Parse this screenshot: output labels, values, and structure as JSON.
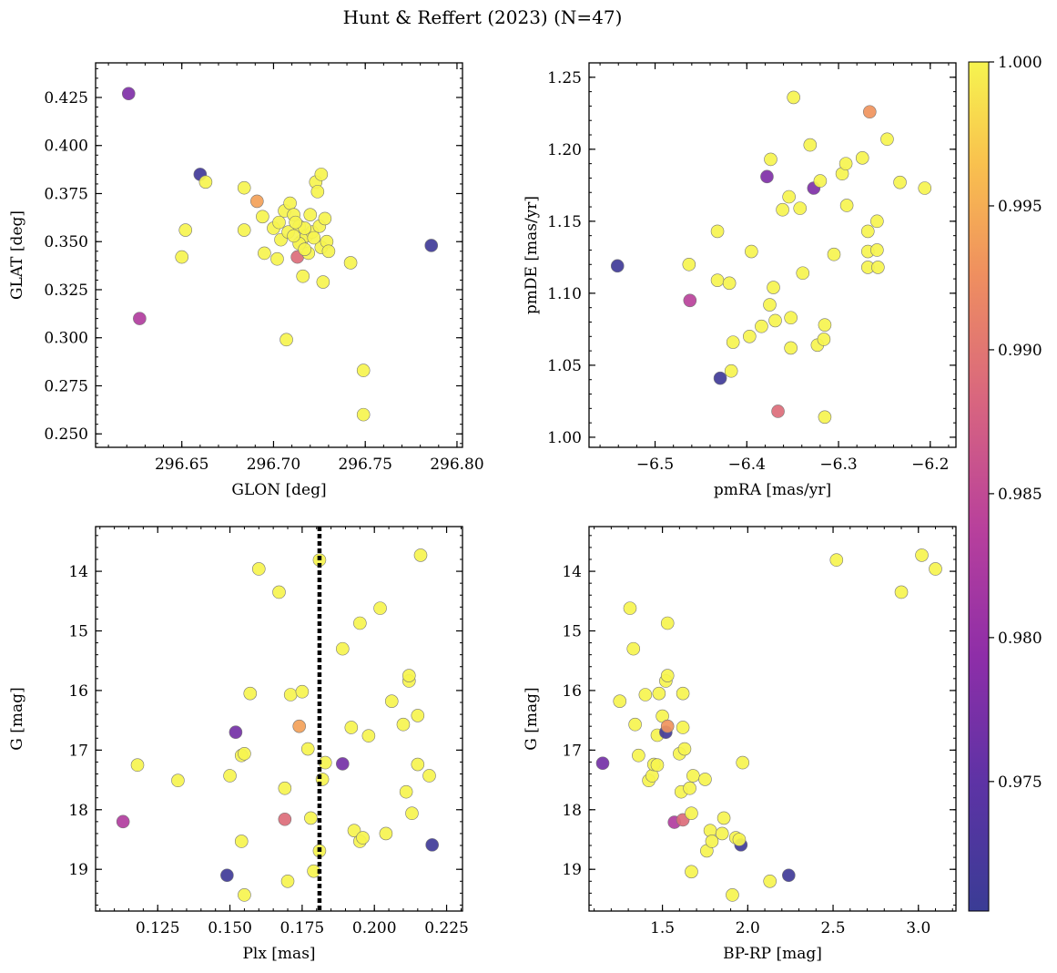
{
  "figure_title": "Hunt & Reffert (2023) (N=47)",
  "colorbar": {
    "cmap": "plasma",
    "range": [
      0.9705,
      1.0
    ],
    "ticks": [
      0.975,
      0.98,
      0.985,
      0.99,
      0.995,
      1.0
    ],
    "tick_labels": [
      "0.975",
      "0.980",
      "0.985",
      "0.990",
      "0.995",
      "1.000"
    ]
  },
  "chart_data": [
    {
      "type": "scatter",
      "id": "glon_glat",
      "xlabel": "GLON [deg]",
      "ylabel": "GLAT [deg]",
      "xlim": [
        296.603,
        296.803
      ],
      "ylim": [
        0.243,
        0.443
      ],
      "xticks": [
        296.65,
        296.7,
        296.75,
        296.8
      ],
      "xtick_labels": [
        "296.65",
        "296.70",
        "296.75",
        "296.80"
      ],
      "yticks": [
        0.25,
        0.275,
        0.3,
        0.325,
        0.35,
        0.375,
        0.4,
        0.425
      ],
      "ytick_labels": [
        "0.250",
        "0.275",
        "0.300",
        "0.325",
        "0.350",
        "0.375",
        "0.400",
        "0.425"
      ],
      "points": [
        [
          296.621,
          0.427,
          0.978
        ],
        [
          296.66,
          0.385,
          0.9715
        ],
        [
          296.663,
          0.381,
          1.0
        ],
        [
          296.691,
          0.371,
          0.994
        ],
        [
          296.684,
          0.378,
          1.0
        ],
        [
          296.652,
          0.356,
          1.0
        ],
        [
          296.65,
          0.342,
          1.0
        ],
        [
          296.627,
          0.31,
          0.983
        ],
        [
          296.684,
          0.356,
          1.0
        ],
        [
          296.694,
          0.363,
          1.0
        ],
        [
          296.695,
          0.344,
          1.0
        ],
        [
          296.702,
          0.341,
          1.0
        ],
        [
          296.704,
          0.351,
          1.0
        ],
        [
          296.706,
          0.366,
          1.0
        ],
        [
          296.709,
          0.37,
          1.0
        ],
        [
          296.708,
          0.355,
          1.0
        ],
        [
          296.711,
          0.364,
          1.0
        ],
        [
          296.714,
          0.358,
          1.0
        ],
        [
          296.713,
          0.342,
          0.989
        ],
        [
          296.715,
          0.35,
          1.0
        ],
        [
          296.716,
          0.332,
          1.0
        ],
        [
          296.718,
          0.353,
          1.0
        ],
        [
          296.719,
          0.344,
          1.0
        ],
        [
          296.72,
          0.364,
          1.0
        ],
        [
          296.721,
          0.355,
          1.0
        ],
        [
          296.723,
          0.381,
          1.0
        ],
        [
          296.724,
          0.376,
          1.0
        ],
        [
          296.725,
          0.358,
          1.0
        ],
        [
          296.726,
          0.385,
          1.0
        ],
        [
          296.726,
          0.347,
          1.0
        ],
        [
          296.728,
          0.362,
          1.0
        ],
        [
          296.729,
          0.35,
          1.0
        ],
        [
          296.727,
          0.329,
          1.0
        ],
        [
          296.742,
          0.339,
          1.0
        ],
        [
          296.707,
          0.299,
          1.0
        ],
        [
          296.749,
          0.283,
          1.0
        ],
        [
          296.749,
          0.26,
          1.0
        ],
        [
          296.786,
          0.348,
          0.9712
        ],
        [
          296.717,
          0.357,
          1.0
        ],
        [
          296.714,
          0.349,
          1.0
        ],
        [
          296.722,
          0.352,
          1.0
        ],
        [
          296.712,
          0.36,
          1.0
        ],
        [
          296.73,
          0.345,
          1.0
        ],
        [
          296.7,
          0.357,
          1.0
        ],
        [
          296.717,
          0.346,
          1.0
        ],
        [
          296.711,
          0.353,
          1.0
        ],
        [
          296.703,
          0.36,
          1.0
        ]
      ]
    },
    {
      "type": "scatter",
      "id": "pmra_pmde",
      "xlabel": "pmRA [mas/yr]",
      "ylabel": "pmDE [mas/yr]",
      "xlim": [
        -6.572,
        -6.172
      ],
      "ylim": [
        0.993,
        1.26
      ],
      "xticks": [
        -6.5,
        -6.4,
        -6.3,
        -6.2
      ],
      "xtick_labels": [
        "−6.5",
        "−6.4",
        "−6.3",
        "−6.2"
      ],
      "yticks": [
        1.0,
        1.05,
        1.1,
        1.15,
        1.2,
        1.25
      ],
      "ytick_labels": [
        "1.00",
        "1.05",
        "1.10",
        "1.15",
        "1.20",
        "1.25"
      ],
      "points": [
        [
          -6.541,
          1.119,
          0.9712
        ],
        [
          -6.463,
          1.12,
          1.0
        ],
        [
          -6.462,
          1.095,
          0.984
        ],
        [
          -6.429,
          1.041,
          0.9712
        ],
        [
          -6.432,
          1.143,
          1.0
        ],
        [
          -6.432,
          1.109,
          1.0
        ],
        [
          -6.419,
          1.107,
          1.0
        ],
        [
          -6.415,
          1.066,
          1.0
        ],
        [
          -6.417,
          1.046,
          1.0
        ],
        [
          -6.395,
          1.129,
          1.0
        ],
        [
          -6.397,
          1.07,
          1.0
        ],
        [
          -6.384,
          1.077,
          1.0
        ],
        [
          -6.378,
          1.181,
          0.978
        ],
        [
          -6.374,
          1.193,
          1.0
        ],
        [
          -6.371,
          1.104,
          1.0
        ],
        [
          -6.375,
          1.092,
          1.0
        ],
        [
          -6.369,
          1.081,
          1.0
        ],
        [
          -6.366,
          1.018,
          0.989
        ],
        [
          -6.361,
          1.158,
          1.0
        ],
        [
          -6.354,
          1.167,
          1.0
        ],
        [
          -6.352,
          1.083,
          1.0
        ],
        [
          -6.352,
          1.062,
          1.0
        ],
        [
          -6.349,
          1.236,
          1.0
        ],
        [
          -6.342,
          1.159,
          1.0
        ],
        [
          -6.339,
          1.114,
          1.0
        ],
        [
          -6.331,
          1.203,
          1.0
        ],
        [
          -6.327,
          1.173,
          0.978
        ],
        [
          -6.323,
          1.064,
          1.0
        ],
        [
          -6.32,
          1.178,
          1.0
        ],
        [
          -6.316,
          1.068,
          1.0
        ],
        [
          -6.315,
          1.078,
          1.0
        ],
        [
          -6.315,
          1.014,
          1.0
        ],
        [
          -6.305,
          1.127,
          1.0
        ],
        [
          -6.296,
          1.183,
          1.0
        ],
        [
          -6.292,
          1.19,
          1.0
        ],
        [
          -6.291,
          1.161,
          1.0
        ],
        [
          -6.274,
          1.194,
          1.0
        ],
        [
          -6.268,
          1.129,
          1.0
        ],
        [
          -6.268,
          1.143,
          1.0
        ],
        [
          -6.268,
          1.118,
          1.0
        ],
        [
          -6.266,
          1.226,
          0.993
        ],
        [
          -6.258,
          1.15,
          1.0
        ],
        [
          -6.258,
          1.13,
          1.0
        ],
        [
          -6.257,
          1.118,
          1.0
        ],
        [
          -6.247,
          1.207,
          1.0
        ],
        [
          -6.233,
          1.177,
          1.0
        ],
        [
          -6.206,
          1.173,
          1.0
        ]
      ]
    },
    {
      "type": "scatter",
      "id": "plx_g",
      "xlabel": "Plx [mas]",
      "ylabel": "G [mag]",
      "xlim": [
        0.1035,
        0.2305
      ],
      "ylim": [
        19.7,
        13.25
      ],
      "y_inverted": true,
      "vline": 0.181,
      "xticks": [
        0.125,
        0.15,
        0.175,
        0.2,
        0.225
      ],
      "xtick_labels": [
        "0.125",
        "0.150",
        "0.175",
        "0.200",
        "0.225"
      ],
      "yticks": [
        14,
        15,
        16,
        17,
        18,
        19
      ],
      "ytick_labels": [
        "14",
        "15",
        "16",
        "17",
        "18",
        "19"
      ],
      "points": [
        [
          0.113,
          18.2,
          0.983
        ],
        [
          0.118,
          17.25,
          1.0
        ],
        [
          0.132,
          17.51,
          1.0
        ],
        [
          0.149,
          19.1,
          0.9712
        ],
        [
          0.15,
          17.43,
          1.0
        ],
        [
          0.152,
          16.7,
          0.977
        ],
        [
          0.154,
          17.09,
          1.0
        ],
        [
          0.155,
          17.06,
          1.0
        ],
        [
          0.154,
          18.53,
          1.0
        ],
        [
          0.155,
          19.43,
          1.0
        ],
        [
          0.157,
          16.05,
          1.0
        ],
        [
          0.16,
          13.96,
          1.0
        ],
        [
          0.167,
          14.35,
          1.0
        ],
        [
          0.169,
          17.64,
          1.0
        ],
        [
          0.169,
          18.16,
          0.989
        ],
        [
          0.17,
          19.2,
          1.0
        ],
        [
          0.171,
          16.07,
          1.0
        ],
        [
          0.174,
          16.6,
          0.994
        ],
        [
          0.175,
          16.02,
          1.0
        ],
        [
          0.177,
          16.98,
          1.0
        ],
        [
          0.178,
          18.14,
          1.0
        ],
        [
          0.179,
          19.03,
          1.0
        ],
        [
          0.181,
          13.81,
          1.0
        ],
        [
          0.181,
          18.69,
          1.0
        ],
        [
          0.182,
          17.49,
          1.0
        ],
        [
          0.183,
          17.21,
          1.0
        ],
        [
          0.189,
          17.23,
          0.977
        ],
        [
          0.189,
          15.3,
          1.0
        ],
        [
          0.192,
          16.62,
          1.0
        ],
        [
          0.193,
          18.35,
          1.0
        ],
        [
          0.195,
          14.87,
          1.0
        ],
        [
          0.195,
          18.53,
          1.0
        ],
        [
          0.196,
          18.47,
          1.0
        ],
        [
          0.198,
          16.76,
          1.0
        ],
        [
          0.202,
          14.62,
          1.0
        ],
        [
          0.204,
          18.4,
          1.0
        ],
        [
          0.206,
          16.18,
          1.0
        ],
        [
          0.21,
          16.57,
          1.0
        ],
        [
          0.211,
          17.7,
          1.0
        ],
        [
          0.212,
          15.84,
          1.0
        ],
        [
          0.212,
          15.75,
          1.0
        ],
        [
          0.213,
          18.06,
          1.0
        ],
        [
          0.215,
          17.24,
          1.0
        ],
        [
          0.215,
          16.42,
          1.0
        ],
        [
          0.216,
          13.73,
          1.0
        ],
        [
          0.219,
          17.43,
          1.0
        ],
        [
          0.22,
          18.59,
          0.9712
        ]
      ]
    },
    {
      "type": "scatter",
      "id": "bprp_g",
      "xlabel": "BP-RP [mag]",
      "ylabel": "G [mag]",
      "xlim": [
        1.07,
        3.22
      ],
      "ylim": [
        19.7,
        13.25
      ],
      "y_inverted": true,
      "xticks": [
        1.5,
        2.0,
        2.5,
        3.0
      ],
      "xtick_labels": [
        "1.5",
        "2.0",
        "2.5",
        "3.0"
      ],
      "yticks": [
        14,
        15,
        16,
        17,
        18,
        19
      ],
      "ytick_labels": [
        "14",
        "15",
        "16",
        "17",
        "18",
        "19"
      ],
      "points": [
        [
          1.15,
          17.22,
          0.977
        ],
        [
          1.25,
          16.18,
          1.0
        ],
        [
          1.31,
          14.62,
          1.0
        ],
        [
          1.33,
          15.3,
          1.0
        ],
        [
          1.34,
          16.57,
          1.0
        ],
        [
          1.36,
          17.09,
          1.0
        ],
        [
          1.4,
          16.07,
          1.0
        ],
        [
          1.42,
          17.51,
          1.0
        ],
        [
          1.44,
          17.43,
          1.0
        ],
        [
          1.45,
          17.24,
          1.0
        ],
        [
          1.47,
          17.25,
          1.0
        ],
        [
          1.47,
          16.75,
          1.0
        ],
        [
          1.48,
          16.05,
          1.0
        ],
        [
          1.5,
          16.43,
          1.0
        ],
        [
          1.52,
          16.7,
          0.9715
        ],
        [
          1.52,
          15.84,
          1.0
        ],
        [
          1.53,
          15.75,
          1.0
        ],
        [
          1.53,
          14.87,
          1.0
        ],
        [
          1.53,
          16.6,
          0.993
        ],
        [
          1.57,
          18.21,
          0.983
        ],
        [
          1.6,
          17.06,
          1.0
        ],
        [
          1.61,
          17.7,
          1.0
        ],
        [
          1.62,
          18.17,
          0.989
        ],
        [
          1.62,
          16.05,
          1.0
        ],
        [
          1.62,
          16.62,
          1.0
        ],
        [
          1.63,
          16.98,
          1.0
        ],
        [
          1.66,
          17.64,
          1.0
        ],
        [
          1.67,
          18.06,
          1.0
        ],
        [
          1.68,
          17.43,
          1.0
        ],
        [
          1.67,
          19.04,
          1.0
        ],
        [
          1.75,
          17.49,
          1.0
        ],
        [
          1.76,
          18.69,
          1.0
        ],
        [
          1.78,
          18.35,
          1.0
        ],
        [
          1.79,
          18.53,
          1.0
        ],
        [
          1.85,
          18.4,
          1.0
        ],
        [
          1.86,
          18.14,
          1.0
        ],
        [
          1.91,
          19.43,
          1.0
        ],
        [
          1.93,
          18.47,
          1.0
        ],
        [
          1.96,
          18.59,
          0.9712
        ],
        [
          1.97,
          17.21,
          1.0
        ],
        [
          2.13,
          19.2,
          1.0
        ],
        [
          2.24,
          19.1,
          0.9712
        ],
        [
          2.52,
          13.81,
          1.0
        ],
        [
          2.9,
          14.35,
          1.0
        ],
        [
          3.02,
          13.73,
          1.0
        ],
        [
          3.1,
          13.96,
          1.0
        ],
        [
          1.95,
          18.5,
          1.0
        ]
      ]
    }
  ]
}
